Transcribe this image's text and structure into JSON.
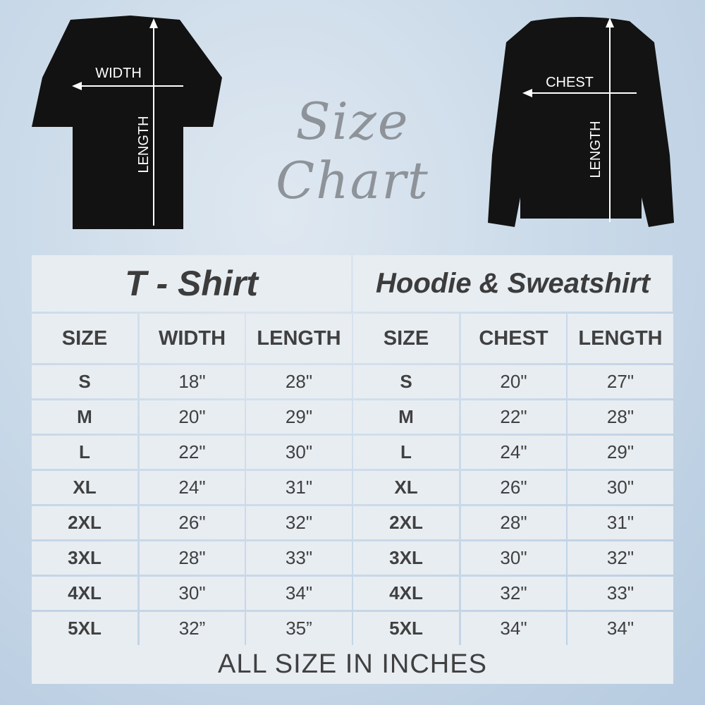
{
  "heading": "Size Chart",
  "tshirt_graphic": {
    "width_label": "WIDTH",
    "length_label": "LENGTH"
  },
  "sweatshirt_graphic": {
    "chest_label": "CHEST",
    "length_label": "LENGTH"
  },
  "tshirt": {
    "title": "T - Shirt",
    "headers": [
      "SIZE",
      "WIDTH",
      "LENGTH"
    ],
    "rows": [
      [
        "S",
        "18\"",
        "28\""
      ],
      [
        "M",
        "20\"",
        "29\""
      ],
      [
        "L",
        "22\"",
        "30\""
      ],
      [
        "XL",
        "24\"",
        "31\""
      ],
      [
        "2XL",
        "26\"",
        "32\""
      ],
      [
        "3XL",
        "28\"",
        "33\""
      ],
      [
        "4XL",
        "30\"",
        "34\""
      ],
      [
        "5XL",
        "32”",
        "35”"
      ]
    ]
  },
  "hoodie": {
    "title": "Hoodie & Sweatshirt",
    "headers": [
      "SIZE",
      "CHEST",
      "LENGTH"
    ],
    "rows": [
      [
        "S",
        "20\"",
        "27\""
      ],
      [
        "M",
        "22\"",
        "28\""
      ],
      [
        "L",
        "24\"",
        "29\""
      ],
      [
        "XL",
        "26\"",
        "30\""
      ],
      [
        "2XL",
        "28\"",
        "31\""
      ],
      [
        "3XL",
        "30\"",
        "32\""
      ],
      [
        "4XL",
        "32\"",
        "33\""
      ],
      [
        "5XL",
        "34\"",
        "34\""
      ]
    ]
  },
  "footer": "ALL SIZE IN INCHES",
  "colors": {
    "cell_bg": "#e8edf2",
    "border": "#c8d6e4",
    "text": "#404040",
    "garment": "#111111"
  }
}
